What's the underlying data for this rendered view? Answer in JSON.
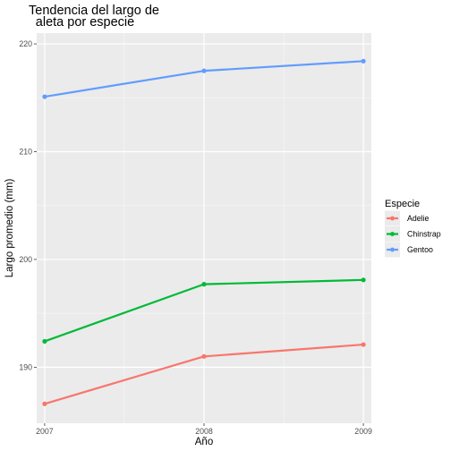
{
  "chart_data": {
    "type": "line",
    "title_lines": [
      "Tendencia del largo de",
      "aleta por especie"
    ],
    "xlabel": "Año",
    "ylabel": "Largo promedio (mm)",
    "x": [
      2007,
      2008,
      2009
    ],
    "x_tick_labels": [
      "2007",
      "2008",
      "2009"
    ],
    "y_ticks": [
      190,
      200,
      210,
      220
    ],
    "y_tick_labels": [
      "190",
      "200",
      "210",
      "220"
    ],
    "xlim": [
      2006.95,
      2009.05
    ],
    "ylim": [
      184.8,
      221.0
    ],
    "grid": true,
    "legend": {
      "title": "Especie",
      "placement": "right"
    },
    "series": [
      {
        "name": "Adelie",
        "color": "#F8766D",
        "values": [
          186.6,
          191.0,
          192.1
        ]
      },
      {
        "name": "Chinstrap",
        "color": "#00BA38",
        "values": [
          192.4,
          197.7,
          198.1
        ]
      },
      {
        "name": "Gentoo",
        "color": "#619CFF",
        "values": [
          215.1,
          217.5,
          218.4
        ]
      }
    ]
  }
}
